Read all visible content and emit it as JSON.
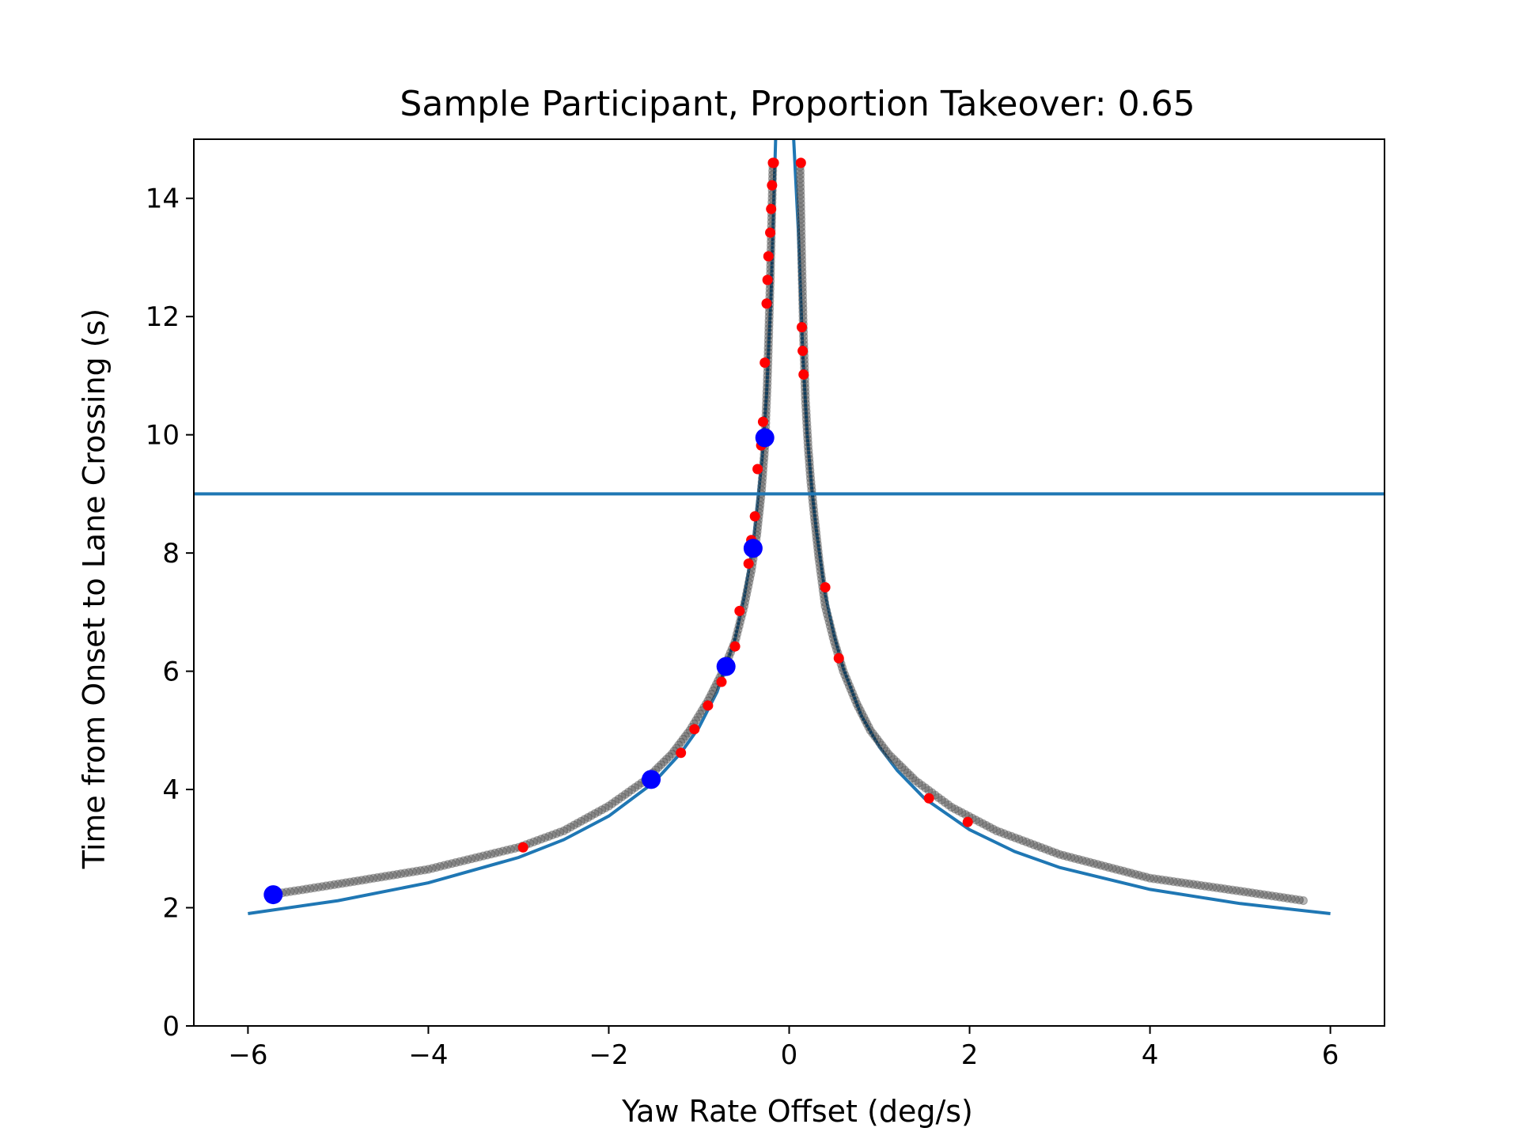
{
  "chart_data": {
    "type": "scatter",
    "title": "Sample Participant, Proportion Takeover: 0.65",
    "xlabel": "Yaw Rate Offset (deg/s)",
    "ylabel": "Time from Onset to Lane Crossing (s)",
    "xlim": [
      -6.6,
      6.6
    ],
    "ylim": [
      0,
      15
    ],
    "xticks": [
      -6,
      -4,
      -2,
      0,
      2,
      4,
      6
    ],
    "xtick_labels": [
      "−6",
      "−4",
      "−2",
      "0",
      "2",
      "4",
      "6"
    ],
    "yticks": [
      0,
      2,
      4,
      6,
      8,
      10,
      12,
      14
    ],
    "ytick_labels": [
      "0",
      "2",
      "4",
      "6",
      "8",
      "10",
      "12",
      "14"
    ],
    "grid": false,
    "horizontal_line": {
      "y": 9.0,
      "color": "#1f77b4"
    },
    "fitted_curve": {
      "color": "#1f77b4",
      "left": {
        "x": [
          -6.0,
          -5.0,
          -4.0,
          -3.0,
          -2.5,
          -2.0,
          -1.5,
          -1.2,
          -1.0,
          -0.8,
          -0.6,
          -0.5,
          -0.4,
          -0.3,
          -0.25,
          -0.2,
          -0.15
        ],
        "y": [
          1.9,
          2.12,
          2.42,
          2.85,
          3.15,
          3.55,
          4.12,
          4.62,
          5.05,
          5.65,
          6.55,
          7.25,
          8.15,
          9.6,
          10.7,
          12.4,
          15.0
        ]
      },
      "right": {
        "x": [
          0.05,
          0.1,
          0.15,
          0.2,
          0.25,
          0.3,
          0.4,
          0.5,
          0.6,
          0.8,
          1.0,
          1.2,
          1.5,
          2.0,
          2.5,
          3.0,
          4.0,
          5.0,
          6.0
        ],
        "y": [
          15.0,
          13.5,
          11.4,
          10.0,
          9.1,
          8.4,
          7.3,
          6.6,
          6.05,
          5.25,
          4.72,
          4.32,
          3.85,
          3.32,
          2.95,
          2.68,
          2.31,
          2.07,
          1.9
        ]
      }
    },
    "gray_trials": {
      "color": "#000000",
      "left": {
        "x": [
          -5.75,
          -5.0,
          -4.0,
          -3.0,
          -2.5,
          -2.0,
          -1.6,
          -1.3,
          -1.1,
          -0.9,
          -0.75,
          -0.6,
          -0.5,
          -0.42,
          -0.36,
          -0.31,
          -0.27,
          -0.24,
          -0.21,
          -0.18
        ],
        "y": [
          2.22,
          2.4,
          2.65,
          3.02,
          3.3,
          3.72,
          4.15,
          4.6,
          5.0,
          5.5,
          5.95,
          6.5,
          7.1,
          7.7,
          8.3,
          9.0,
          9.8,
          11.0,
          12.6,
          14.6
        ]
      },
      "right": {
        "x": [
          0.12,
          0.14,
          0.16,
          0.18,
          0.21,
          0.24,
          0.28,
          0.33,
          0.4,
          0.5,
          0.6,
          0.75,
          0.9,
          1.1,
          1.4,
          1.8,
          2.3,
          3.0,
          4.0,
          5.0,
          5.7
        ],
        "y": [
          14.6,
          12.9,
          11.6,
          10.6,
          9.8,
          9.2,
          8.6,
          7.9,
          7.1,
          6.5,
          6.0,
          5.45,
          5.0,
          4.6,
          4.15,
          3.7,
          3.3,
          2.9,
          2.5,
          2.28,
          2.12
        ]
      }
    },
    "red_points": {
      "color": "#ff0000",
      "x": [
        -2.95,
        -1.5,
        -1.2,
        -1.05,
        -0.9,
        -0.75,
        -0.6,
        -0.55,
        -0.45,
        -0.42,
        -0.38,
        -0.35,
        -0.31,
        -0.29,
        -0.27,
        -0.25,
        -0.24,
        -0.23,
        -0.21,
        -0.2,
        -0.19,
        -0.18,
        -0.17,
        0.13,
        0.14,
        0.15,
        0.16,
        0.4,
        0.55,
        1.55,
        1.98
      ],
      "y": [
        3.02,
        4.22,
        4.62,
        5.02,
        5.42,
        5.82,
        6.42,
        7.02,
        7.82,
        8.22,
        8.62,
        9.42,
        9.82,
        10.22,
        11.22,
        12.22,
        12.62,
        13.02,
        13.42,
        13.82,
        14.22,
        14.6,
        14.6,
        14.6,
        11.82,
        11.42,
        11.02,
        7.42,
        6.22,
        3.85,
        3.45
      ]
    },
    "blue_points": {
      "color": "#0000ff",
      "x": [
        -5.72,
        -1.53,
        -0.7,
        -0.4,
        -0.27
      ],
      "y": [
        2.22,
        4.17,
        6.08,
        8.08,
        9.95
      ]
    }
  }
}
